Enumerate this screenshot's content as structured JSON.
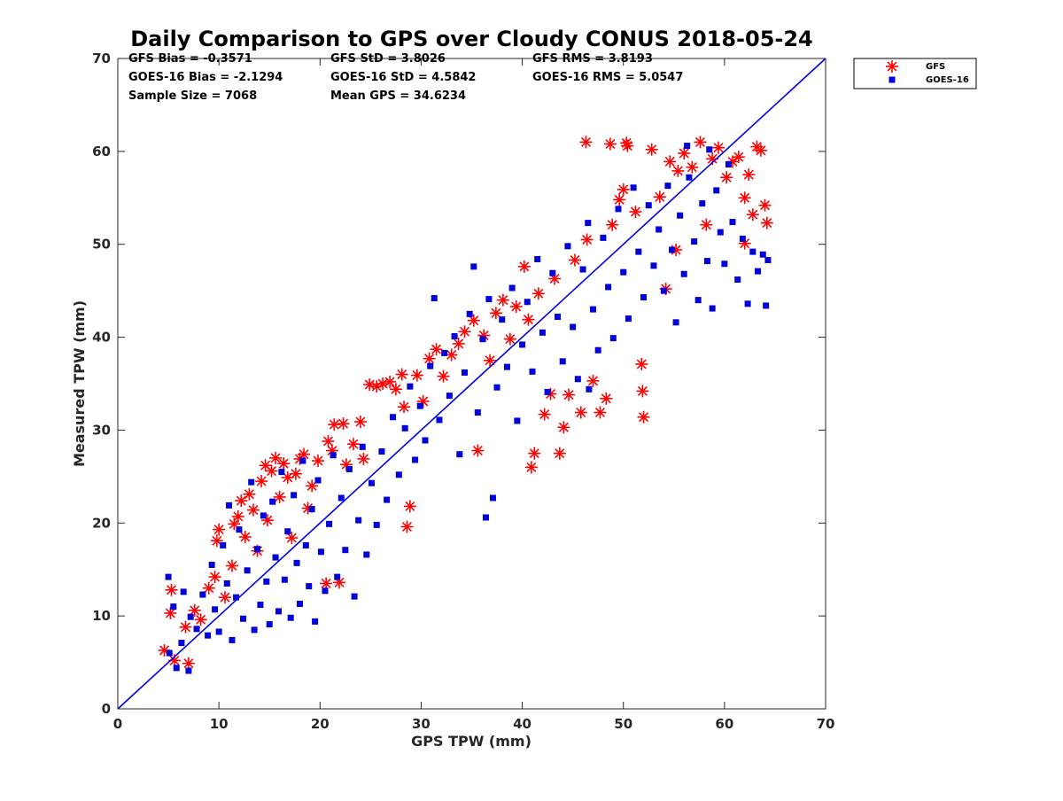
{
  "chart_data": {
    "type": "scatter",
    "title": "Daily Comparison to GPS over Cloudy CONUS 2018-05-24",
    "xlabel": "GPS TPW (mm)",
    "ylabel": "Measured TPW (mm)",
    "xlim": [
      0,
      70
    ],
    "ylim": [
      0,
      70
    ],
    "xticks": [
      "0",
      "10",
      "20",
      "30",
      "40",
      "50",
      "60",
      "70"
    ],
    "yticks": [
      "0",
      "10",
      "20",
      "30",
      "40",
      "50",
      "60",
      "70"
    ],
    "grid": false,
    "legend_position": "outside-top-right",
    "reference_line": {
      "x": [
        0,
        70
      ],
      "y": [
        0,
        70
      ],
      "color": "#0000e6"
    },
    "stats": {
      "gfs_bias": "GFS Bias = -0.3571",
      "gfs_std": "GFS StD = 3.8026",
      "gfs_rms": "GFS RMS = 3.8193",
      "goes_bias": "GOES-16 Bias = -2.1294",
      "goes_std": "GOES-16 StD = 4.5842",
      "goes_rms": "GOES-16 RMS = 5.0547",
      "sample_size": "Sample Size = 7068",
      "mean_gps": "Mean GPS = 34.6234"
    },
    "series": [
      {
        "name": "GFS",
        "marker": "asterisk",
        "color": "#ff0000",
        "points": [
          [
            4.6,
            6.3
          ],
          [
            5.2,
            10.3
          ],
          [
            5.3,
            12.8
          ],
          [
            5.6,
            5.2
          ],
          [
            6.7,
            8.8
          ],
          [
            7.0,
            4.9
          ],
          [
            7.6,
            10.6
          ],
          [
            8.2,
            9.6
          ],
          [
            9.0,
            13.0
          ],
          [
            9.6,
            14.2
          ],
          [
            9.8,
            18.1
          ],
          [
            10.0,
            19.3
          ],
          [
            10.6,
            12.0
          ],
          [
            11.3,
            15.4
          ],
          [
            11.5,
            19.9
          ],
          [
            11.9,
            20.7
          ],
          [
            12.2,
            22.4
          ],
          [
            12.6,
            18.5
          ],
          [
            13.0,
            23.1
          ],
          [
            13.4,
            21.4
          ],
          [
            13.8,
            17.0
          ],
          [
            14.2,
            24.5
          ],
          [
            14.6,
            26.2
          ],
          [
            14.8,
            20.3
          ],
          [
            15.2,
            25.6
          ],
          [
            15.6,
            27.0
          ],
          [
            16.0,
            22.8
          ],
          [
            16.4,
            26.4
          ],
          [
            16.8,
            24.9
          ],
          [
            17.2,
            18.4
          ],
          [
            17.6,
            25.3
          ],
          [
            18.0,
            26.9
          ],
          [
            18.4,
            27.4
          ],
          [
            18.8,
            21.6
          ],
          [
            19.2,
            24.0
          ],
          [
            19.8,
            26.7
          ],
          [
            20.6,
            13.5
          ],
          [
            20.8,
            28.8
          ],
          [
            21.2,
            27.8
          ],
          [
            21.4,
            30.6
          ],
          [
            21.9,
            13.6
          ],
          [
            22.3,
            30.7
          ],
          [
            22.6,
            26.3
          ],
          [
            23.3,
            28.5
          ],
          [
            24.0,
            30.9
          ],
          [
            24.3,
            26.9
          ],
          [
            24.9,
            34.9
          ],
          [
            25.6,
            34.7
          ],
          [
            26.2,
            35.0
          ],
          [
            26.9,
            35.2
          ],
          [
            27.5,
            34.4
          ],
          [
            28.1,
            36.0
          ],
          [
            28.3,
            32.5
          ],
          [
            28.6,
            19.6
          ],
          [
            28.9,
            21.8
          ],
          [
            29.6,
            35.9
          ],
          [
            30.2,
            33.1
          ],
          [
            30.8,
            37.7
          ],
          [
            31.5,
            38.7
          ],
          [
            32.2,
            35.8
          ],
          [
            33.0,
            38.1
          ],
          [
            33.7,
            39.3
          ],
          [
            34.3,
            40.6
          ],
          [
            35.2,
            41.8
          ],
          [
            35.6,
            27.8
          ],
          [
            36.2,
            40.2
          ],
          [
            36.8,
            37.5
          ],
          [
            37.4,
            42.6
          ],
          [
            38.1,
            44.0
          ],
          [
            38.8,
            39.8
          ],
          [
            39.4,
            43.3
          ],
          [
            40.2,
            47.6
          ],
          [
            40.6,
            41.9
          ],
          [
            40.9,
            26.0
          ],
          [
            41.2,
            27.5
          ],
          [
            41.6,
            44.7
          ],
          [
            42.2,
            31.7
          ],
          [
            42.8,
            33.9
          ],
          [
            43.2,
            46.3
          ],
          [
            43.7,
            27.5
          ],
          [
            44.1,
            30.3
          ],
          [
            44.6,
            33.8
          ],
          [
            45.2,
            48.3
          ],
          [
            45.8,
            31.9
          ],
          [
            46.4,
            50.5
          ],
          [
            47.0,
            35.3
          ],
          [
            47.7,
            31.9
          ],
          [
            48.3,
            33.4
          ],
          [
            48.9,
            52.1
          ],
          [
            49.6,
            54.8
          ],
          [
            50.0,
            55.9
          ],
          [
            50.4,
            60.6
          ],
          [
            51.2,
            53.5
          ],
          [
            51.8,
            37.1
          ],
          [
            51.9,
            34.2
          ],
          [
            52.0,
            31.4
          ],
          [
            52.8,
            60.2
          ],
          [
            53.6,
            55.1
          ],
          [
            54.2,
            45.2
          ],
          [
            54.6,
            58.9
          ],
          [
            55.2,
            49.4
          ],
          [
            55.4,
            57.9
          ],
          [
            56.0,
            59.8
          ],
          [
            56.8,
            58.3
          ],
          [
            57.6,
            61.0
          ],
          [
            58.2,
            52.1
          ],
          [
            58.8,
            59.2
          ],
          [
            59.4,
            60.4
          ],
          [
            60.2,
            57.2
          ],
          [
            60.8,
            58.9
          ],
          [
            61.4,
            59.4
          ],
          [
            62.0,
            55.0
          ],
          [
            62.4,
            57.5
          ],
          [
            62.0,
            50.1
          ],
          [
            62.8,
            53.2
          ],
          [
            63.2,
            60.5
          ],
          [
            63.6,
            60.1
          ],
          [
            64.0,
            54.2
          ],
          [
            64.2,
            52.3
          ],
          [
            46.3,
            61.0
          ],
          [
            48.7,
            60.8
          ],
          [
            50.3,
            60.9
          ]
        ]
      },
      {
        "name": "GOES-16",
        "marker": "square",
        "color": "#0000dd",
        "points": [
          [
            5.0,
            14.2
          ],
          [
            5.1,
            6.0
          ],
          [
            5.5,
            11.0
          ],
          [
            5.8,
            4.4
          ],
          [
            6.3,
            7.1
          ],
          [
            6.5,
            12.6
          ],
          [
            7.0,
            4.1
          ],
          [
            7.2,
            9.9
          ],
          [
            7.8,
            8.6
          ],
          [
            8.4,
            12.3
          ],
          [
            8.9,
            7.9
          ],
          [
            9.3,
            15.5
          ],
          [
            9.6,
            10.7
          ],
          [
            10.0,
            8.3
          ],
          [
            10.4,
            17.6
          ],
          [
            10.8,
            13.5
          ],
          [
            11.0,
            21.9
          ],
          [
            11.3,
            7.4
          ],
          [
            11.7,
            12.0
          ],
          [
            12.0,
            19.3
          ],
          [
            12.4,
            9.7
          ],
          [
            12.8,
            14.9
          ],
          [
            13.2,
            24.4
          ],
          [
            13.5,
            8.5
          ],
          [
            13.8,
            17.2
          ],
          [
            14.1,
            11.2
          ],
          [
            14.4,
            20.8
          ],
          [
            14.7,
            13.7
          ],
          [
            15.0,
            9.1
          ],
          [
            15.3,
            22.3
          ],
          [
            15.6,
            16.3
          ],
          [
            15.9,
            10.5
          ],
          [
            16.2,
            25.5
          ],
          [
            16.5,
            13.9
          ],
          [
            16.8,
            19.1
          ],
          [
            17.1,
            9.8
          ],
          [
            17.4,
            23.0
          ],
          [
            17.7,
            15.7
          ],
          [
            18.0,
            11.3
          ],
          [
            18.3,
            26.7
          ],
          [
            18.6,
            17.6
          ],
          [
            18.9,
            13.2
          ],
          [
            19.2,
            21.5
          ],
          [
            19.5,
            9.4
          ],
          [
            19.8,
            24.6
          ],
          [
            20.1,
            16.9
          ],
          [
            20.5,
            12.7
          ],
          [
            20.9,
            19.9
          ],
          [
            21.3,
            27.3
          ],
          [
            21.7,
            14.2
          ],
          [
            22.1,
            22.7
          ],
          [
            22.5,
            17.1
          ],
          [
            22.9,
            25.8
          ],
          [
            23.4,
            12.1
          ],
          [
            23.8,
            20.3
          ],
          [
            24.2,
            28.2
          ],
          [
            24.6,
            16.6
          ],
          [
            25.1,
            24.3
          ],
          [
            25.6,
            19.8
          ],
          [
            26.1,
            27.7
          ],
          [
            26.6,
            22.5
          ],
          [
            27.2,
            31.4
          ],
          [
            27.8,
            25.2
          ],
          [
            28.4,
            30.2
          ],
          [
            28.9,
            34.7
          ],
          [
            29.4,
            26.8
          ],
          [
            29.9,
            32.6
          ],
          [
            30.4,
            28.9
          ],
          [
            30.9,
            36.9
          ],
          [
            31.3,
            44.2
          ],
          [
            31.8,
            31.1
          ],
          [
            32.3,
            38.3
          ],
          [
            32.8,
            33.7
          ],
          [
            33.3,
            40.1
          ],
          [
            33.8,
            27.4
          ],
          [
            34.3,
            36.2
          ],
          [
            34.8,
            42.5
          ],
          [
            35.2,
            47.6
          ],
          [
            35.6,
            31.9
          ],
          [
            36.1,
            39.8
          ],
          [
            36.4,
            20.6
          ],
          [
            36.7,
            44.1
          ],
          [
            37.1,
            22.7
          ],
          [
            37.5,
            34.6
          ],
          [
            38.0,
            41.9
          ],
          [
            38.5,
            36.8
          ],
          [
            39.0,
            45.3
          ],
          [
            39.5,
            31.0
          ],
          [
            40.0,
            39.2
          ],
          [
            40.5,
            43.8
          ],
          [
            41.0,
            36.3
          ],
          [
            41.5,
            48.4
          ],
          [
            42.0,
            40.5
          ],
          [
            42.5,
            34.1
          ],
          [
            43.0,
            46.9
          ],
          [
            43.5,
            42.2
          ],
          [
            44.0,
            37.4
          ],
          [
            44.5,
            49.8
          ],
          [
            45.0,
            41.1
          ],
          [
            45.5,
            35.5
          ],
          [
            46.0,
            47.3
          ],
          [
            46.5,
            52.3
          ],
          [
            47.0,
            43.0
          ],
          [
            47.5,
            38.6
          ],
          [
            48.0,
            50.7
          ],
          [
            48.5,
            45.4
          ],
          [
            49.0,
            39.9
          ],
          [
            49.5,
            53.8
          ],
          [
            50.0,
            47.0
          ],
          [
            50.5,
            42.0
          ],
          [
            51.0,
            56.1
          ],
          [
            51.5,
            49.2
          ],
          [
            52.0,
            44.3
          ],
          [
            52.5,
            54.2
          ],
          [
            53.0,
            47.7
          ],
          [
            53.5,
            51.6
          ],
          [
            54.0,
            45.0
          ],
          [
            54.4,
            56.3
          ],
          [
            54.8,
            49.4
          ],
          [
            55.2,
            41.6
          ],
          [
            55.6,
            53.1
          ],
          [
            56.0,
            46.8
          ],
          [
            56.5,
            57.2
          ],
          [
            57.0,
            50.3
          ],
          [
            57.4,
            44.0
          ],
          [
            57.8,
            54.4
          ],
          [
            58.3,
            48.2
          ],
          [
            58.8,
            43.1
          ],
          [
            59.2,
            55.8
          ],
          [
            59.6,
            51.3
          ],
          [
            60.0,
            47.9
          ],
          [
            60.4,
            58.6
          ],
          [
            60.8,
            52.4
          ],
          [
            61.3,
            46.2
          ],
          [
            61.8,
            50.6
          ],
          [
            62.3,
            43.6
          ],
          [
            62.8,
            49.2
          ],
          [
            63.3,
            47.1
          ],
          [
            63.8,
            48.9
          ],
          [
            64.1,
            43.4
          ],
          [
            64.3,
            48.3
          ],
          [
            58.5,
            60.2
          ],
          [
            56.3,
            60.6
          ],
          [
            46.6,
            34.4
          ]
        ]
      }
    ]
  }
}
